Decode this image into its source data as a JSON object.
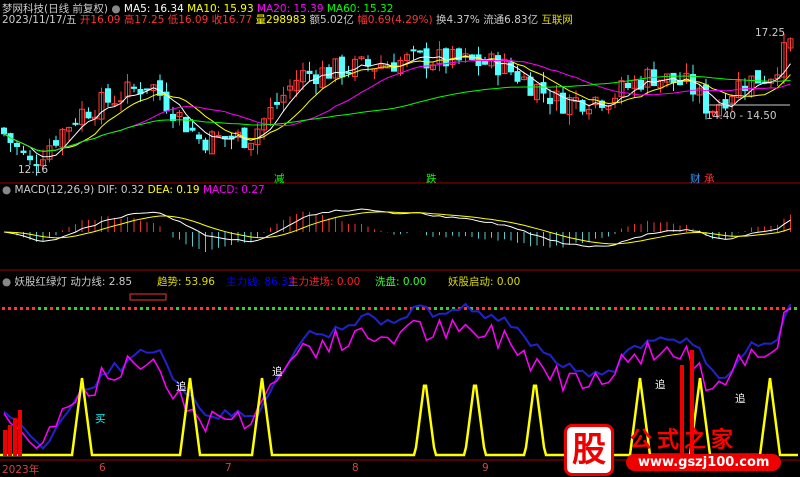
{
  "header": {
    "stock": "梦网科技(日线 前复权)",
    "ma5": "MA5: 16.34",
    "ma10": "MA10: 15.93",
    "ma20": "MA20: 15.39",
    "ma60": "MA60: 15.32",
    "date": "2023/11/17/五",
    "open": "开16.09",
    "high": "高17.25",
    "low": "低16.09",
    "close": "收16.77",
    "vol": "量298983",
    "amount": "额5.02亿",
    "change": "幅0.69(4.29%)",
    "turnover": "换4.37%",
    "float": "流通6.83亿",
    "sector": "互联网"
  },
  "main": {
    "low_label": "12.16",
    "high_label": "17.25",
    "range_label": "14.40 - 14.50",
    "markers": [
      "减",
      "跌",
      "财",
      "承"
    ]
  },
  "macd": {
    "title": "MACD(12,26,9)",
    "dif": "DIF: 0.32",
    "dea": "DEA: 0.19",
    "macd": "MACD: 0.27"
  },
  "indicator": {
    "title": "妖股红绿灯",
    "power": "动力线: 2.85",
    "trend": "趋势: 53.96",
    "main_line": "主力线: 86.33",
    "main_entry": "主力进场: 0.00",
    "wash": "洗盘: 0.00",
    "launch": "妖股启动: 0.00",
    "signals": [
      "买",
      "追",
      "追",
      "追",
      "追"
    ]
  },
  "axis": {
    "labels": [
      "2023年",
      "6",
      "7",
      "8",
      "9"
    ]
  },
  "watermark": {
    "char": "股",
    "text": "公式之家",
    "url": "www.gszj100.com"
  },
  "colors": {
    "up": "#ff3c3c",
    "down": "#54ffff",
    "ma5": "#ffffff",
    "ma10": "#ffff00",
    "ma20": "#ff00ff",
    "ma60": "#00ff00",
    "divider": "#a00000"
  }
}
